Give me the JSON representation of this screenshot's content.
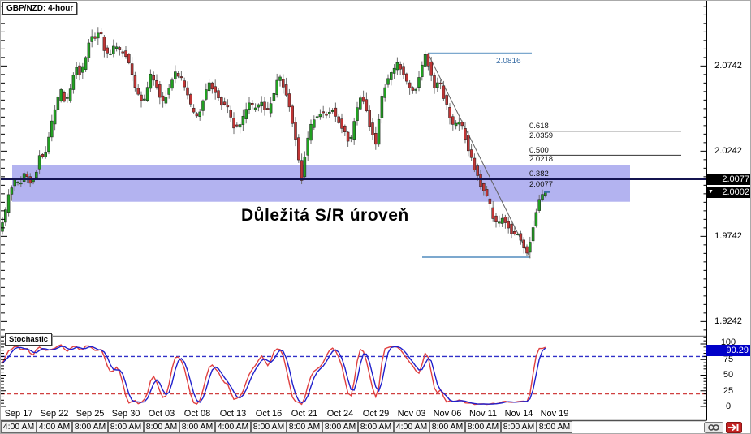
{
  "window": {
    "symbol_label": "GBP/NZD: 4-hour"
  },
  "annotation": {
    "text": "Důležitá S/R úroveň"
  },
  "price_axis": {
    "labels": [
      "2.0742",
      "2.0242",
      "1.9742",
      "1.9242"
    ],
    "bid_box": "2.0077",
    "last_box": "2.0002"
  },
  "fibonacci": {
    "swing_high_label": "2.0816",
    "levels": [
      {
        "ratio": "0.618",
        "price": "2.0359"
      },
      {
        "ratio": "0.500",
        "price": "2.0218"
      },
      {
        "ratio": "0.382",
        "price": "2.0077"
      }
    ]
  },
  "stochastic": {
    "label": "Stochastic",
    "current_value": "90.29",
    "scale_labels": [
      "100",
      "75",
      "50",
      "25",
      "0"
    ]
  },
  "time_axis": {
    "dates": [
      "Sep 17",
      "Sep 22",
      "Sep 25",
      "Sep 30",
      "Oct 03",
      "Oct 08",
      "Oct 13",
      "Oct 16",
      "Oct 21",
      "Oct 24",
      "Oct 29",
      "Nov 03",
      "Nov 06",
      "Nov 11",
      "Nov 14",
      "Nov 19"
    ],
    "times": [
      "4:00 AM",
      "4:00 AM",
      "8:00 AM",
      "8:00 AM",
      "8:00 AM",
      "8:00 AM",
      "4:00 AM",
      "8:00 AM",
      "8:00 AM",
      "8:00 AM",
      "8:00 AM",
      "4:00 AM",
      "8:00 AM",
      "8:00 AM",
      "8:00 AM",
      "8:00 AM"
    ]
  },
  "colors": {
    "candle_up": "#22A022",
    "candle_down": "#C03636",
    "candle_outline": "#1a1a1a",
    "wick": "#6e6e6e",
    "sr_zone": "#B3B3F0",
    "sr_line": "#141450",
    "fib_line": "#333333",
    "swing_line": "#7CA8CE",
    "swing_text": "#3A6EA5",
    "trendline": "#606060",
    "stoch_k": "#E04040",
    "stoch_d": "#2020CC",
    "overbought_dash": "#3030C8",
    "oversold_dash": "#D04040",
    "axis_line": "#000000",
    "panel_border": "#808080"
  },
  "chart_data": {
    "type": "candlestick",
    "symbol": "GBP/NZD",
    "timeframe": "4-hour",
    "title": "GBP/NZD: 4-hour",
    "y_axis_visible_labels": [
      2.0742,
      2.0242,
      1.9742,
      1.9242
    ],
    "current_bid": 2.0077,
    "current_price": 2.0002,
    "approx_price_range": [
      1.917,
      2.112
    ],
    "sr_zone": {
      "top": 2.016,
      "bottom": 1.9945
    },
    "sr_line_price": 2.0077,
    "fibonacci": {
      "swing_high": 2.0816,
      "swing_low": 1.962,
      "levels": [
        {
          "ratio": 0.618,
          "price": 2.0359
        },
        {
          "ratio": 0.5,
          "price": 2.0218
        },
        {
          "ratio": 0.382,
          "price": 2.0077
        }
      ]
    },
    "price_path": [
      [
        2,
        1.977
      ],
      [
        8,
        1.99
      ],
      [
        14,
        2.003
      ],
      [
        20,
        2.007
      ],
      [
        26,
        2.004
      ],
      [
        32,
        2.013
      ],
      [
        38,
        2.006
      ],
      [
        44,
        2.009
      ],
      [
        50,
        2.024
      ],
      [
        56,
        2.02
      ],
      [
        62,
        2.035
      ],
      [
        70,
        2.052
      ],
      [
        76,
        2.06
      ],
      [
        82,
        2.052
      ],
      [
        88,
        2.062
      ],
      [
        94,
        2.075
      ],
      [
        100,
        2.068
      ],
      [
        106,
        2.078
      ],
      [
        112,
        2.093
      ],
      [
        118,
        2.09
      ],
      [
        124,
        2.096
      ],
      [
        130,
        2.082
      ],
      [
        136,
        2.08
      ],
      [
        142,
        2.086
      ],
      [
        150,
        2.083
      ],
      [
        158,
        2.079
      ],
      [
        164,
        2.068
      ],
      [
        170,
        2.057
      ],
      [
        178,
        2.052
      ],
      [
        186,
        2.07
      ],
      [
        192,
        2.065
      ],
      [
        200,
        2.052
      ],
      [
        208,
        2.06
      ],
      [
        216,
        2.07
      ],
      [
        224,
        2.067
      ],
      [
        230,
        2.06
      ],
      [
        238,
        2.047
      ],
      [
        244,
        2.043
      ],
      [
        252,
        2.057
      ],
      [
        258,
        2.064
      ],
      [
        266,
        2.06
      ],
      [
        274,
        2.052
      ],
      [
        282,
        2.049
      ],
      [
        290,
        2.037
      ],
      [
        298,
        2.04
      ],
      [
        306,
        2.052
      ],
      [
        314,
        2.049
      ],
      [
        322,
        2.053
      ],
      [
        330,
        2.047
      ],
      [
        338,
        2.058
      ],
      [
        344,
        2.069
      ],
      [
        352,
        2.06
      ],
      [
        360,
        2.044
      ],
      [
        366,
        2.028
      ],
      [
        372,
        2.006
      ],
      [
        378,
        2.028
      ],
      [
        386,
        2.043
      ],
      [
        394,
        2.047
      ],
      [
        402,
        2.045
      ],
      [
        410,
        2.049
      ],
      [
        418,
        2.042
      ],
      [
        426,
        2.034
      ],
      [
        432,
        2.028
      ],
      [
        440,
        2.048
      ],
      [
        446,
        2.058
      ],
      [
        452,
        2.048
      ],
      [
        458,
        2.036
      ],
      [
        464,
        2.028
      ],
      [
        470,
        2.055
      ],
      [
        476,
        2.064
      ],
      [
        482,
        2.069
      ],
      [
        490,
        2.076
      ],
      [
        496,
        2.072
      ],
      [
        502,
        2.064
      ],
      [
        508,
        2.058
      ],
      [
        514,
        2.062
      ],
      [
        520,
        2.074
      ],
      [
        525,
        2.0816
      ],
      [
        530,
        2.072
      ],
      [
        536,
        2.062
      ],
      [
        542,
        2.066
      ],
      [
        548,
        2.055
      ],
      [
        554,
        2.046
      ],
      [
        560,
        2.038
      ],
      [
        566,
        2.042
      ],
      [
        572,
        2.036
      ],
      [
        578,
        2.025
      ],
      [
        584,
        2.016
      ],
      [
        590,
        2.008
      ],
      [
        596,
        2.001
      ],
      [
        602,
        1.996
      ],
      [
        608,
        1.985
      ],
      [
        614,
        1.98
      ],
      [
        620,
        1.985
      ],
      [
        626,
        1.981
      ],
      [
        632,
        1.976
      ],
      [
        638,
        1.975
      ],
      [
        644,
        1.971
      ],
      [
        650,
        1.964
      ],
      [
        656,
        1.976
      ],
      [
        662,
        1.99
      ],
      [
        668,
        1.999
      ],
      [
        672,
        2.0002
      ]
    ],
    "stochastic": {
      "current_value": 90.29,
      "overbought": 80,
      "oversold": 20,
      "scale": [
        0,
        25,
        50,
        75,
        100
      ]
    }
  }
}
